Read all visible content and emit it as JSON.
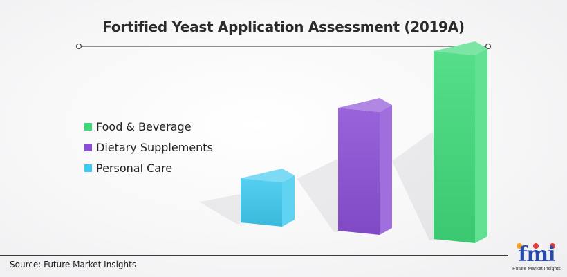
{
  "title": "Fortified Yeast Application Assessment (2019A)",
  "source": "Source: Future Market Insights",
  "logo": {
    "text": "fmi",
    "subtext": "Future Market Insights"
  },
  "chart_data": {
    "type": "bar",
    "title": "Fortified Yeast Application Assessment (2019A)",
    "categories": [
      "Personal Care",
      "Dietary Supplements",
      "Food & Beverage"
    ],
    "values": [
      1,
      2,
      3
    ],
    "legend": "left",
    "grid": false,
    "colors": {
      "Food & Beverage": "#3fd97a",
      "Dietary Supplements": "#8b4fd6",
      "Personal Care": "#3ec9ef"
    },
    "legend_entries": [
      "Food & Beverage",
      "Dietary Supplements",
      "Personal Care"
    ]
  }
}
